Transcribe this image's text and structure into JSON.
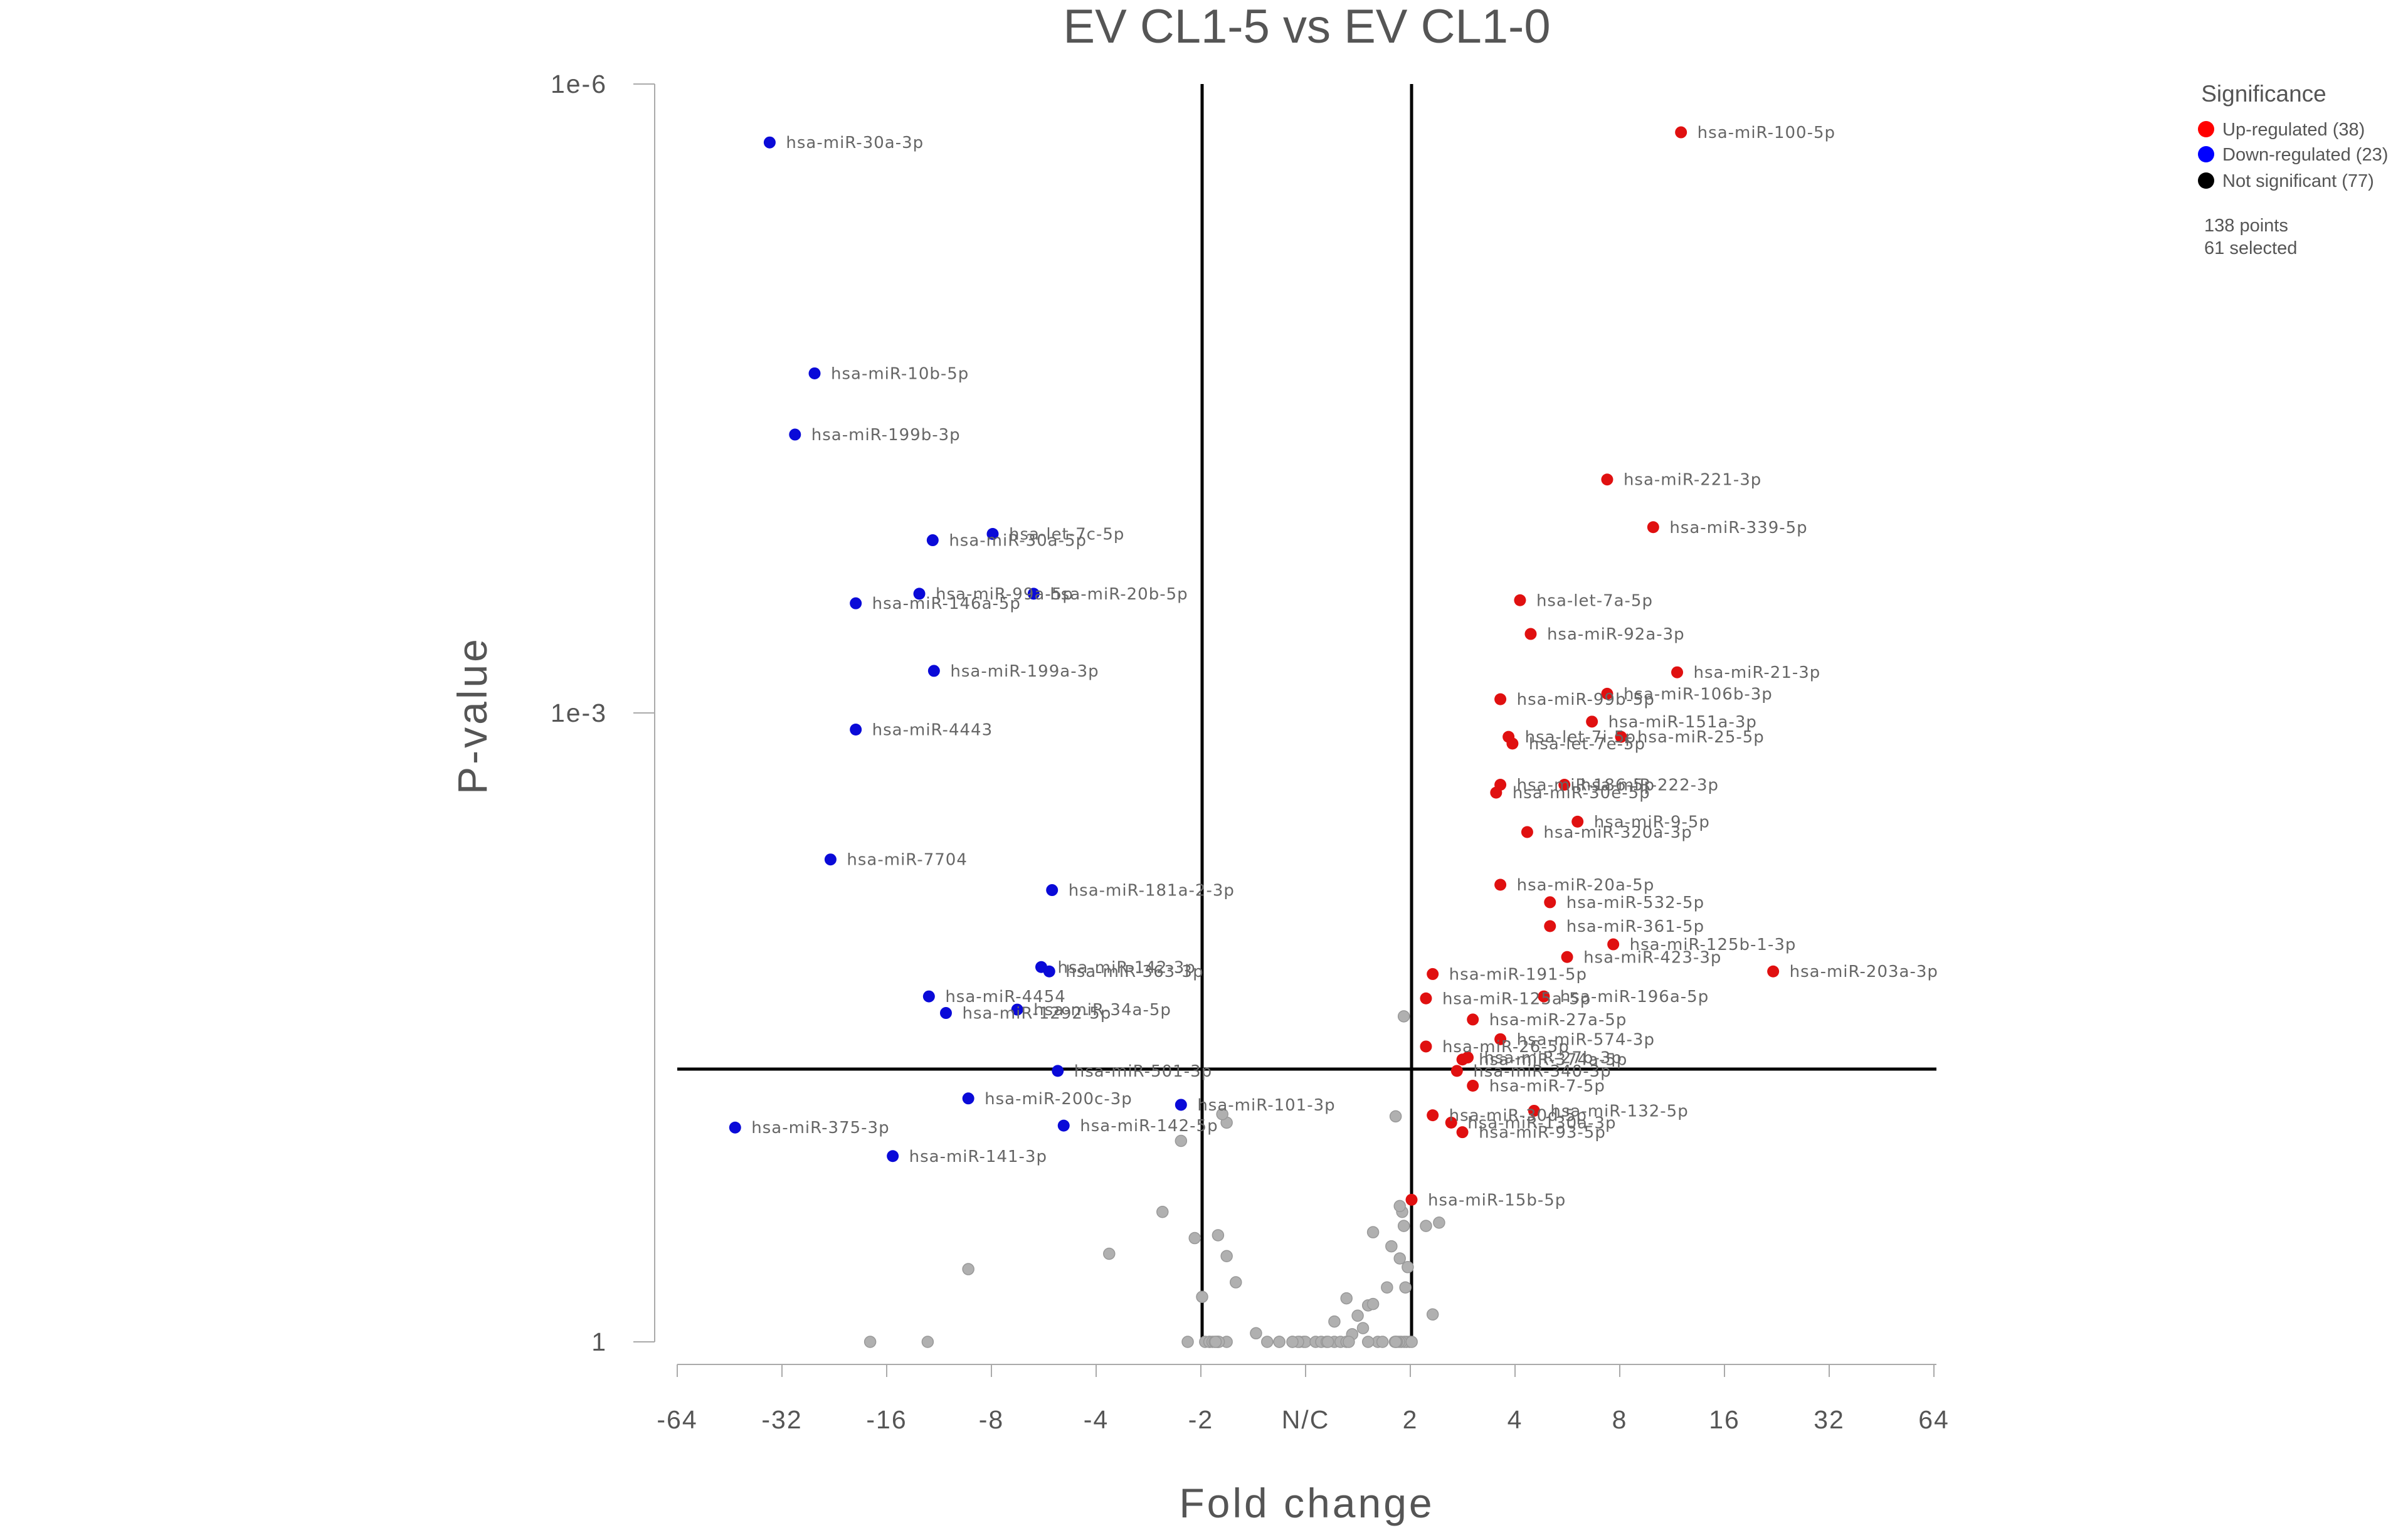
{
  "chart_data": {
    "type": "scatter",
    "title": "EV CL1-5 vs EV CL1-0",
    "xlabel": "Fold change",
    "ylabel": "P-value",
    "x_scale": "signed log2 fold change",
    "y_scale": "log",
    "xlim": [
      -64,
      64
    ],
    "ylim": [
      1,
      1e-06
    ],
    "x_ticks": [
      "-64",
      "-32",
      "-16",
      "-8",
      "-4",
      "-2",
      "N/C",
      "2",
      "4",
      "8",
      "16",
      "32",
      "64"
    ],
    "y_ticks": [
      "1e-6",
      "1e-3",
      "1"
    ],
    "thresholds": {
      "fold_change": [
        -2,
        2
      ],
      "p_value": 0.05
    },
    "colors": {
      "up": "#e01010",
      "down": "#0a0ad8",
      "not_significant": "#b0b0b0",
      "line": "#000000"
    },
    "legend": {
      "title": "Significance",
      "position": "top-right",
      "items": [
        {
          "label": "Up-regulated (38)",
          "color": "#ff0000"
        },
        {
          "label": "Down-regulated (23)",
          "color": "#0000ff"
        },
        {
          "label": "Not significant (77)",
          "color": "#000000"
        }
      ],
      "summary": [
        "138 points",
        "61 selected"
      ]
    },
    "series": [
      {
        "name": "Up-regulated (38)",
        "points": [
          {
            "label": "hsa-miR-100-5p",
            "fc": 11.9,
            "p": 1.7e-06
          },
          {
            "label": "hsa-miR-221-3p",
            "fc": 7.3,
            "p": 7.7e-05
          },
          {
            "label": "hsa-miR-339-5p",
            "fc": 9.9,
            "p": 0.00013
          },
          {
            "label": "hsa-let-7a-5p",
            "fc": 4.1,
            "p": 0.00029
          },
          {
            "label": "hsa-miR-92a-3p",
            "fc": 4.4,
            "p": 0.00042
          },
          {
            "label": "hsa-miR-21-3p",
            "fc": 11.6,
            "p": 0.00064
          },
          {
            "label": "hsa-miR-106b-3p",
            "fc": 7.3,
            "p": 0.00081
          },
          {
            "label": "hsa-miR-99b-5p",
            "fc": 3.6,
            "p": 0.00086
          },
          {
            "label": "hsa-miR-151a-3p",
            "fc": 6.6,
            "p": 0.0011
          },
          {
            "label": "hsa-miR-25-5p",
            "fc": 8.0,
            "p": 0.0013
          },
          {
            "label": "hsa-let-7i-5p",
            "fc": 3.8,
            "p": 0.0013
          },
          {
            "label": "hsa-let-7e-5p",
            "fc": 3.9,
            "p": 0.0014
          },
          {
            "label": "hsa-miR-222-3p",
            "fc": 5.5,
            "p": 0.0022
          },
          {
            "label": "hsa-miR-186-5p",
            "fc": 3.6,
            "p": 0.0022
          },
          {
            "label": "hsa-miR-30e-5p",
            "fc": 3.5,
            "p": 0.0024
          },
          {
            "label": "hsa-miR-9-5p",
            "fc": 6.0,
            "p": 0.0033
          },
          {
            "label": "hsa-miR-320a-3p",
            "fc": 4.3,
            "p": 0.0037
          },
          {
            "label": "hsa-miR-20a-5p",
            "fc": 3.6,
            "p": 0.0066
          },
          {
            "label": "hsa-miR-532-5p",
            "fc": 5.0,
            "p": 0.008
          },
          {
            "label": "hsa-miR-361-5p",
            "fc": 5.0,
            "p": 0.0104
          },
          {
            "label": "hsa-miR-125b-1-3p",
            "fc": 7.6,
            "p": 0.0127
          },
          {
            "label": "hsa-miR-423-3p",
            "fc": 5.6,
            "p": 0.0146
          },
          {
            "label": "hsa-miR-203a-3p",
            "fc": 21.9,
            "p": 0.0171
          },
          {
            "label": "hsa-miR-191-5p",
            "fc": 2.3,
            "p": 0.0176
          },
          {
            "label": "hsa-miR-196a-5p",
            "fc": 4.8,
            "p": 0.0225
          },
          {
            "label": "hsa-miR-125a-5p",
            "fc": 2.2,
            "p": 0.023
          },
          {
            "label": "hsa-miR-27a-5p",
            "fc": 3.0,
            "p": 0.029
          },
          {
            "label": "hsa-miR-574-3p",
            "fc": 3.6,
            "p": 0.036
          },
          {
            "label": "hsa-miR-26-5p",
            "fc": 2.2,
            "p": 0.039
          },
          {
            "label": "hsa-miR-374a-5p",
            "fc": 2.8,
            "p": 0.045
          },
          {
            "label": "hsa-miR-27b-3p",
            "fc": 2.9,
            "p": 0.044
          },
          {
            "label": "hsa-miR-340-3p",
            "fc": 2.7,
            "p": 0.051
          },
          {
            "label": "hsa-miR-7-5p",
            "fc": 3.0,
            "p": 0.06
          },
          {
            "label": "hsa-miR-132-5p",
            "fc": 4.5,
            "p": 0.079
          },
          {
            "label": "hsa-miR-30d-5p",
            "fc": 2.3,
            "p": 0.083
          },
          {
            "label": "hsa-miR-130a-3p",
            "fc": 2.6,
            "p": 0.09
          },
          {
            "label": "hsa-miR-93-5p",
            "fc": 2.8,
            "p": 0.1
          },
          {
            "label": "hsa-miR-15b-5p",
            "fc": 2.0,
            "p": 0.21
          }
        ]
      },
      {
        "name": "Down-regulated (23)",
        "points": [
          {
            "label": "hsa-miR-30a-3p",
            "fc": -35.0,
            "p": 1.9e-06
          },
          {
            "label": "hsa-miR-10b-5p",
            "fc": -26.0,
            "p": 2.4e-05
          },
          {
            "label": "hsa-miR-199b-3p",
            "fc": -29.6,
            "p": 4.7e-05
          },
          {
            "label": "hsa-let-7c-5p",
            "fc": -8.0,
            "p": 0.00014
          },
          {
            "label": "hsa-miR-30a-5p",
            "fc": -11.9,
            "p": 0.00015
          },
          {
            "label": "hsa-miR-99a-5p",
            "fc": -13.0,
            "p": 0.00027
          },
          {
            "label": "hsa-miR-20b-5p",
            "fc": -6.1,
            "p": 0.00027
          },
          {
            "label": "hsa-miR-146a-5p",
            "fc": -19.8,
            "p": 0.0003
          },
          {
            "label": "hsa-miR-199a-3p",
            "fc": -11.8,
            "p": 0.00063
          },
          {
            "label": "hsa-miR-4443",
            "fc": -19.8,
            "p": 0.0012
          },
          {
            "label": "hsa-miR-7704",
            "fc": -23.4,
            "p": 0.005
          },
          {
            "label": "hsa-miR-181a-2-3p",
            "fc": -5.4,
            "p": 0.007
          },
          {
            "label": "hsa-miR-142-3p",
            "fc": -5.8,
            "p": 0.0163
          },
          {
            "label": "hsa-miR-363-3p",
            "fc": -5.5,
            "p": 0.0171
          },
          {
            "label": "hsa-miR-4454",
            "fc": -12.2,
            "p": 0.0225
          },
          {
            "label": "hsa-miR-34a-5p",
            "fc": -6.8,
            "p": 0.026
          },
          {
            "label": "hsa-miR-1292-5p",
            "fc": -10.9,
            "p": 0.027
          },
          {
            "label": "hsa-miR-501-3p",
            "fc": -5.2,
            "p": 0.051
          },
          {
            "label": "hsa-miR-200c-3p",
            "fc": -9.4,
            "p": 0.069
          },
          {
            "label": "hsa-miR-101-3p",
            "fc": -2.3,
            "p": 0.074
          },
          {
            "label": "hsa-miR-375-3p",
            "fc": -44.0,
            "p": 0.095
          },
          {
            "label": "hsa-miR-142-5p",
            "fc": -5.0,
            "p": 0.093
          },
          {
            "label": "hsa-miR-141-3p",
            "fc": -15.5,
            "p": 0.13
          }
        ]
      },
      {
        "name": "Not significant (77)",
        "points": [
          {
            "fc": -2.6,
            "p": 0.24
          },
          {
            "fc": -2.1,
            "p": 0.32
          },
          {
            "fc": -1.8,
            "p": 0.31
          },
          {
            "fc": -1.7,
            "p": 0.39
          },
          {
            "fc": -1.6,
            "p": 0.52
          },
          {
            "fc": -2.0,
            "p": 0.61
          },
          {
            "fc": -3.7,
            "p": 0.38
          },
          {
            "fc": -9.4,
            "p": 0.45
          },
          {
            "fc": -12.3,
            "p": 1.25
          },
          {
            "fc": -18.0,
            "p": 3.3
          },
          {
            "fc": -1.4,
            "p": 0.91
          },
          {
            "fc": -2.2,
            "p": 1.5
          },
          {
            "fc": -1.2,
            "p": 1.1
          },
          {
            "fc": -1.1,
            "p": 1.6
          },
          {
            "fc": -1.9,
            "p": 1.8
          },
          {
            "fc": -1.8,
            "p": 2.6
          },
          {
            "fc": -1.7,
            "p": 3.0
          },
          {
            "fc": -1.3,
            "p": 3.6
          },
          {
            "fc": -1.05,
            "p": 3.2
          },
          {
            "fc": -1.2,
            "p": 4.2
          },
          {
            "fc": -1.02,
            "p": 1.9
          },
          {
            "fc": 0.95,
            "p": 3.4
          },
          {
            "fc": -0.97,
            "p": 2.3
          },
          {
            "fc": 0.98,
            "p": 2.6
          },
          {
            "fc": -0.93,
            "p": 3.0
          },
          {
            "fc": 0.93,
            "p": 3.8
          },
          {
            "fc": -0.9,
            "p": 2.9
          },
          {
            "fc": 0.9,
            "p": 2.5
          },
          {
            "fc": -0.88,
            "p": 3.2
          },
          {
            "fc": 0.88,
            "p": 2.9
          },
          {
            "fc": -0.86,
            "p": 2.6
          },
          {
            "fc": 0.86,
            "p": 3.1
          },
          {
            "fc": -0.85,
            "p": 3.5
          },
          {
            "fc": 0.85,
            "p": 2.2
          },
          {
            "fc": -0.84,
            "p": 2.2
          },
          {
            "fc": 0.84,
            "p": 1.8
          },
          {
            "fc": -1.01,
            "p": 3.3
          },
          {
            "fc": 1.0,
            "p": 2.9
          },
          {
            "fc": -1.06,
            "p": 1.8
          },
          {
            "fc": 1.06,
            "p": 1.7
          },
          {
            "fc": -1.1,
            "p": 1.3
          },
          {
            "fc": 1.1,
            "p": 1.2
          },
          {
            "fc": 1.14,
            "p": 3.5
          },
          {
            "fc": 1.2,
            "p": 1.9
          },
          {
            "fc": 1.25,
            "p": 1.4
          },
          {
            "fc": 1.3,
            "p": 1.0
          },
          {
            "fc": 1.35,
            "p": 0.92
          },
          {
            "fc": 1.4,
            "p": 0.75
          },
          {
            "fc": 1.45,
            "p": 0.86
          },
          {
            "fc": 1.5,
            "p": 0.67
          },
          {
            "fc": 1.55,
            "p": 0.66
          },
          {
            "fc": 1.6,
            "p": 1.2
          },
          {
            "fc": 1.65,
            "p": 2.6
          },
          {
            "fc": 1.7,
            "p": 0.55
          },
          {
            "fc": 1.8,
            "p": 1.9
          },
          {
            "fc": 1.9,
            "p": 0.28
          },
          {
            "fc": 1.85,
            "p": 0.4
          },
          {
            "fc": 1.95,
            "p": 0.44
          },
          {
            "fc": 1.92,
            "p": 0.55
          },
          {
            "fc": 1.88,
            "p": 0.24
          },
          {
            "fc": 1.75,
            "p": 0.35
          },
          {
            "fc": 1.55,
            "p": 0.3
          },
          {
            "fc": 1.5,
            "p": 1.4
          },
          {
            "fc": 1.2,
            "p": 0.8
          },
          {
            "fc": 1.32,
            "p": 1.28
          },
          {
            "fc": 1.3,
            "p": 0.62
          },
          {
            "fc": 1.15,
            "p": 2.4
          },
          {
            "fc": 1.8,
            "p": 0.084
          },
          {
            "fc": 1.9,
            "p": 0.028
          },
          {
            "fc": 1.85,
            "p": 0.225
          },
          {
            "fc": 2.2,
            "p": 0.28
          },
          {
            "fc": 2.4,
            "p": 0.27
          },
          {
            "fc": 2.3,
            "p": 0.74
          },
          {
            "fc": -1.7,
            "p": 0.09
          },
          {
            "fc": -1.75,
            "p": 0.082
          },
          {
            "fc": -2.3,
            "p": 0.11
          },
          {
            "fc": -0.87,
            "p": 3.9
          }
        ]
      }
    ]
  }
}
